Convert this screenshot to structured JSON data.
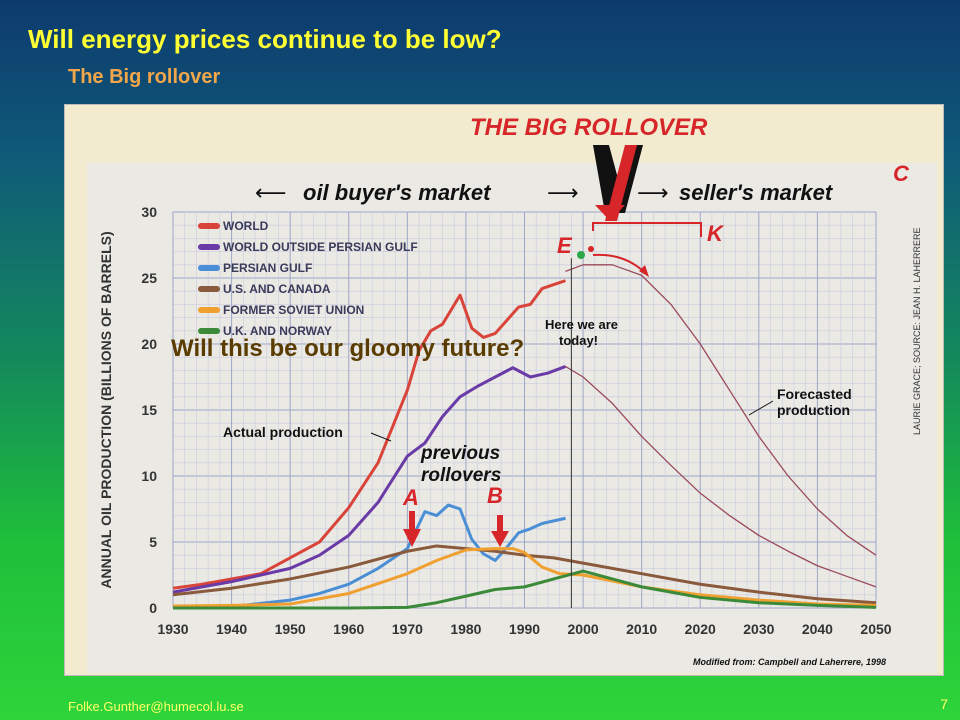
{
  "slide": {
    "title": "Will energy prices continue to be low?",
    "subtitle": "The Big rollover",
    "footer_email": "Folke.Gunther@humecol.lu.se",
    "page_number": "7"
  },
  "figure": {
    "headline": "THE BIG ROLLOVER",
    "buyer_market": "oil buyer's market",
    "seller_market": "seller's market",
    "letter_c": "C",
    "letter_e": "E",
    "letter_k": "K",
    "letter_a": "A",
    "letter_b": "B",
    "here_we_are_1": "Here we are",
    "here_we_are_2": "today!",
    "forecast_1": "Forecasted",
    "forecast_2": "production",
    "actual": "Actual production",
    "previous_1": "previous",
    "previous_2": "rollovers",
    "credit_vertical": "LAURIE GRACE; SOURCE: JEAN H. LAHERRERE",
    "modified_from": "Modified from: Campbell and Laherrere, 1998",
    "overlay_question": "Will this be our gloomy future?"
  },
  "colors": {
    "world": "#d9443a",
    "outside_gulf": "#6a3aa6",
    "persian_gulf": "#4a8fd6",
    "us_canada": "#8a5a3c",
    "soviet": "#f0a030",
    "uk_norway": "#3a8a3a",
    "forecast": "#9a4a5a",
    "headline": "#d6262a"
  },
  "chart_data": {
    "type": "line",
    "title": "THE BIG ROLLOVER",
    "xlabel": "",
    "ylabel": "ANNUAL OIL PRODUCTION (BILLIONS OF BARRELS)",
    "xlim": [
      1930,
      2050
    ],
    "ylim": [
      0,
      30
    ],
    "xticks": [
      1930,
      1940,
      1950,
      1960,
      1970,
      1980,
      1990,
      2000,
      2010,
      2020,
      2030,
      2040,
      2050
    ],
    "yticks": [
      0,
      5,
      10,
      15,
      20,
      25,
      30
    ],
    "grid": true,
    "legend_position": "top-left",
    "series": [
      {
        "name": "WORLD",
        "color": "#d9443a",
        "x": [
          1930,
          1935,
          1940,
          1945,
          1950,
          1955,
          1960,
          1965,
          1970,
          1972,
          1974,
          1976,
          1979,
          1981,
          1983,
          1985,
          1987,
          1989,
          1991,
          1993,
          1995,
          1997
        ],
        "y": [
          1.5,
          1.8,
          2.2,
          2.6,
          3.8,
          5.0,
          7.6,
          11.0,
          16.5,
          19.5,
          21.0,
          21.5,
          23.7,
          21.2,
          20.5,
          20.8,
          21.8,
          22.8,
          23.0,
          24.2,
          24.5,
          24.8
        ]
      },
      {
        "name": "WORLD OUTSIDE PERSIAN GULF",
        "color": "#6a3aa6",
        "x": [
          1930,
          1940,
          1950,
          1955,
          1960,
          1965,
          1970,
          1973,
          1976,
          1979,
          1982,
          1985,
          1988,
          1991,
          1994,
          1997
        ],
        "y": [
          1.2,
          2.0,
          3.0,
          4.0,
          5.5,
          8.0,
          11.5,
          12.5,
          14.5,
          16.0,
          16.8,
          17.5,
          18.2,
          17.5,
          17.8,
          18.3
        ]
      },
      {
        "name": "PERSIAN GULF",
        "color": "#4a8fd6",
        "x": [
          1940,
          1950,
          1955,
          1960,
          1965,
          1970,
          1973,
          1975,
          1977,
          1979,
          1981,
          1983,
          1985,
          1987,
          1989,
          1991,
          1993,
          1995,
          1997
        ],
        "y": [
          0.1,
          0.6,
          1.1,
          1.8,
          3.0,
          4.5,
          7.3,
          7.0,
          7.8,
          7.5,
          5.2,
          4.1,
          3.6,
          4.6,
          5.7,
          6.0,
          6.4,
          6.6,
          6.8
        ]
      },
      {
        "name": "U.S. AND CANADA",
        "color": "#8a5a3c",
        "x": [
          1930,
          1940,
          1950,
          1960,
          1970,
          1975,
          1980,
          1985,
          1990,
          1995,
          2000,
          2010,
          2020,
          2030,
          2040,
          2050
        ],
        "y": [
          1.0,
          1.5,
          2.2,
          3.1,
          4.3,
          4.7,
          4.5,
          4.3,
          4.0,
          3.8,
          3.4,
          2.6,
          1.8,
          1.2,
          0.7,
          0.4
        ]
      },
      {
        "name": "FORMER SOVIET UNION",
        "color": "#f0a030",
        "x": [
          1930,
          1940,
          1950,
          1960,
          1970,
          1975,
          1980,
          1985,
          1988,
          1990,
          1993,
          1996,
          2000,
          2010,
          2020,
          2030,
          2040,
          2050
        ],
        "y": [
          0.15,
          0.2,
          0.3,
          1.1,
          2.6,
          3.6,
          4.4,
          4.5,
          4.5,
          4.2,
          3.1,
          2.6,
          2.5,
          1.6,
          1.0,
          0.6,
          0.3,
          0.2
        ]
      },
      {
        "name": "U.K. AND NORWAY",
        "color": "#3a8a3a",
        "x": [
          1930,
          1960,
          1970,
          1975,
          1980,
          1985,
          1990,
          1995,
          2000,
          2005,
          2010,
          2020,
          2030,
          2040,
          2050
        ],
        "y": [
          0,
          0,
          0.05,
          0.4,
          0.9,
          1.4,
          1.6,
          2.2,
          2.8,
          2.2,
          1.6,
          0.8,
          0.4,
          0.2,
          0.05
        ]
      },
      {
        "name": "Forecasted production",
        "color": "#9a4a5a",
        "x": [
          1997,
          2000,
          2005,
          2010,
          2015,
          2020,
          2025,
          2030,
          2035,
          2040,
          2045,
          2050
        ],
        "y": [
          25.5,
          26.0,
          26.0,
          25.2,
          23.0,
          20.0,
          16.5,
          13.0,
          10.0,
          7.5,
          5.5,
          4.0
        ]
      },
      {
        "name": "Forecasted production (outside Persian Gulf)",
        "color": "#9a4a5a",
        "x": [
          1997,
          2000,
          2005,
          2010,
          2015,
          2020,
          2025,
          2030,
          2035,
          2040,
          2045,
          2050
        ],
        "y": [
          18.3,
          17.5,
          15.5,
          13.0,
          10.8,
          8.7,
          7.0,
          5.5,
          4.3,
          3.2,
          2.4,
          1.6
        ]
      }
    ]
  }
}
